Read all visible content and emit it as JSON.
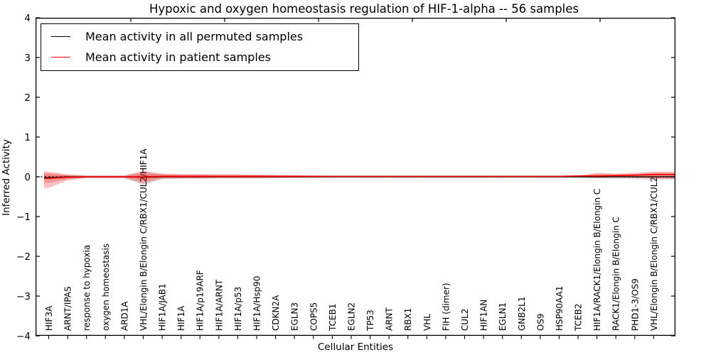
{
  "chart_data": {
    "type": "line",
    "title": "Hypoxic and oxygen homeostasis regulation of HIF-1-alpha -- 56 samples",
    "xlabel": "Cellular Entities",
    "ylabel": "Inferred Activity",
    "ylim": [
      -4,
      4
    ],
    "grid": false,
    "zero_reference_line": 0,
    "ytick_labels": [
      "4",
      "3",
      "2",
      "1",
      "0",
      "−1",
      "−2",
      "−3",
      "−4"
    ],
    "ytick_values": [
      4,
      3,
      2,
      1,
      0,
      -1,
      -2,
      -3,
      -4
    ],
    "categories": [
      "HIF3A",
      "ARNT/IPAS",
      "response to hypoxia",
      "oxygen homeostasis",
      "ARD1A",
      "VHL/Elongin B/Elongin C/RBX1/CUL2/HIF1A",
      "HIF1A/JAB1",
      "HIF1A",
      "HIF1A/p19ARF",
      "HIF1A/ARNT",
      "HIF1A/p53",
      "HIF1A/Hsp90",
      "CDKN2A",
      "EGLN3",
      "COPS5",
      "TCEB1",
      "EGLN2",
      "TP53",
      "ARNT",
      "RBX1",
      "VHL",
      "FIH (dimer)",
      "CUL2",
      "HIF1AN",
      "EGLN1",
      "GNB2L1",
      "OS9",
      "HSP90AA1",
      "TCEB2",
      "HIF1A/RACK1/Elongin B/Elongin C",
      "RACK1/Elongin B/Elongin C",
      "PHD1-3/OS9",
      "VHL/Elongin B/Elongin C/RBX1/CUL2"
    ],
    "series": [
      {
        "name": "Mean activity in all permuted samples",
        "color": "#000000",
        "values": [
          -0.02,
          0,
          0,
          0,
          0,
          -0.01,
          0,
          0,
          0,
          0,
          0,
          0,
          0,
          0,
          0,
          0,
          0,
          0,
          0,
          0,
          0,
          0,
          0,
          0,
          0,
          0,
          0,
          0,
          0,
          0,
          0,
          0,
          0
        ]
      },
      {
        "name": "Mean activity in patient samples",
        "color": "#ff0000",
        "values": [
          -0.04,
          -0.01,
          0,
          0,
          0,
          0,
          0.01,
          0.01,
          0.01,
          0.01,
          0.01,
          0.01,
          0.01,
          0.01,
          0.01,
          0.01,
          0.01,
          0.01,
          0.01,
          0.01,
          0.01,
          0.01,
          0.01,
          0.01,
          0.01,
          0.01,
          0.01,
          0.01,
          0.02,
          0.02,
          0.03,
          0.04,
          0.06
        ]
      }
    ],
    "bands": [
      {
        "name": "permuted-samples-range",
        "color": "rgba(0,0,0,0.13)",
        "hi": [
          0.06,
          0.05,
          0.04,
          0.04,
          0.04,
          0.12,
          0.06,
          0.05,
          0.05,
          0.05,
          0.05,
          0.05,
          0.04,
          0.04,
          0.04,
          0.04,
          0.04,
          0.04,
          0.04,
          0.04,
          0.04,
          0.04,
          0.04,
          0.04,
          0.04,
          0.04,
          0.04,
          0.04,
          0.04,
          0.05,
          0.05,
          0.06,
          0.07
        ],
        "lo": [
          -0.06,
          -0.05,
          -0.04,
          -0.04,
          -0.04,
          -0.2,
          -0.06,
          -0.05,
          -0.05,
          -0.05,
          -0.05,
          -0.05,
          -0.04,
          -0.04,
          -0.04,
          -0.04,
          -0.04,
          -0.04,
          -0.04,
          -0.04,
          -0.04,
          -0.04,
          -0.04,
          -0.04,
          -0.04,
          -0.04,
          -0.04,
          -0.04,
          -0.04,
          -0.05,
          -0.05,
          -0.06,
          -0.07
        ]
      },
      {
        "name": "patient-samples-range-outer",
        "color": "rgba(255,0,0,0.25)",
        "hi": [
          0.13,
          0.06,
          0.03,
          0.03,
          0.03,
          0.15,
          0.08,
          0.07,
          0.07,
          0.06,
          0.06,
          0.05,
          0.05,
          0.04,
          0.03,
          0.02,
          0.02,
          0.02,
          0.02,
          0.02,
          0.02,
          0.02,
          0.02,
          0.02,
          0.02,
          0.02,
          0.02,
          0.02,
          0.03,
          0.1,
          0.08,
          0.1,
          0.13
        ],
        "lo": [
          -0.28,
          -0.09,
          -0.03,
          -0.03,
          -0.03,
          -0.17,
          -0.05,
          -0.04,
          -0.04,
          -0.03,
          -0.03,
          -0.03,
          -0.03,
          -0.02,
          -0.02,
          -0.01,
          -0.01,
          -0.01,
          -0.01,
          -0.01,
          -0.01,
          -0.01,
          -0.01,
          -0.01,
          -0.01,
          -0.01,
          -0.01,
          -0.01,
          -0.01,
          -0.03,
          -0.02,
          -0.03,
          -0.05
        ]
      },
      {
        "name": "patient-samples-range-inner",
        "color": "rgba(255,0,0,0.22)",
        "hi": [
          0.09,
          0.04,
          0.02,
          0.02,
          0.02,
          0.08,
          0.06,
          0.05,
          0.05,
          0.04,
          0.04,
          0.04,
          0.03,
          0.03,
          0.02,
          0.015,
          0.015,
          0.015,
          0.015,
          0.015,
          0.015,
          0.015,
          0.015,
          0.015,
          0.015,
          0.015,
          0.015,
          0.015,
          0.02,
          0.07,
          0.06,
          0.07,
          0.1
        ],
        "lo": [
          -0.15,
          -0.06,
          -0.02,
          -0.02,
          -0.02,
          -0.09,
          -0.03,
          -0.03,
          -0.03,
          -0.02,
          -0.02,
          -0.02,
          -0.02,
          -0.015,
          -0.01,
          -0.005,
          -0.005,
          -0.005,
          -0.005,
          -0.005,
          -0.005,
          -0.005,
          -0.005,
          -0.005,
          -0.005,
          -0.005,
          -0.005,
          -0.005,
          -0.005,
          -0.02,
          -0.01,
          -0.02,
          -0.03
        ]
      }
    ],
    "legend": {
      "position": "upper left",
      "items": [
        {
          "label": "Mean activity in all permuted samples",
          "color": "#000000"
        },
        {
          "label": "Mean activity in patient samples",
          "color": "#ff0000"
        }
      ]
    }
  }
}
